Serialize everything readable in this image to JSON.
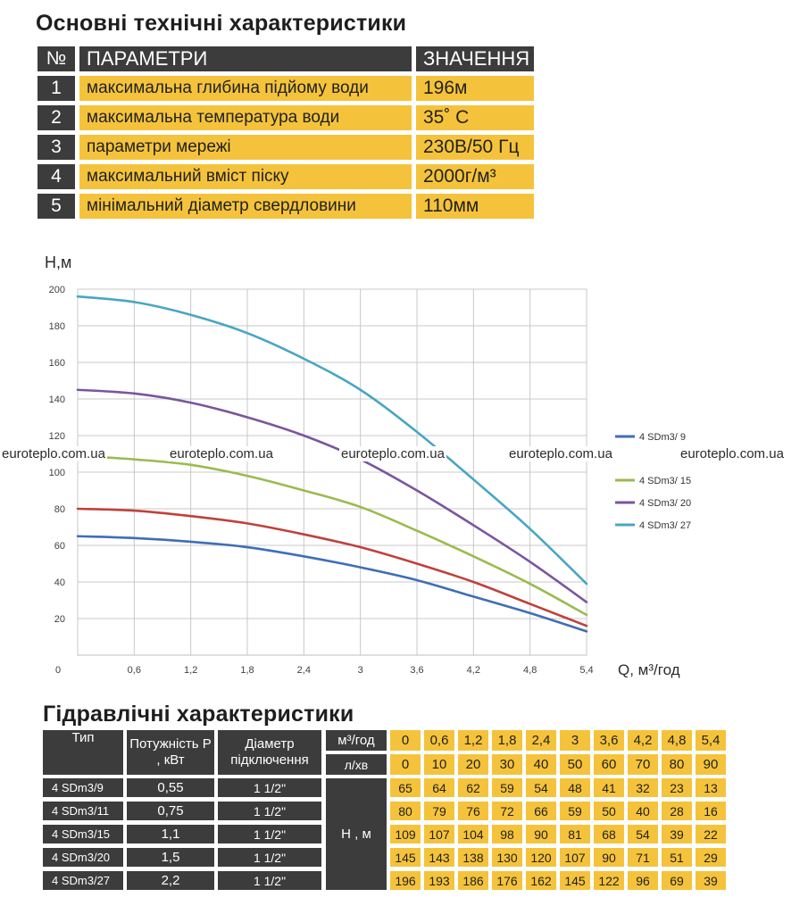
{
  "specs": {
    "title": "Основні технічні характеристики",
    "header": {
      "num": "№",
      "param": "ПАРАМЕТРИ",
      "value": "ЗНАЧЕННЯ"
    },
    "rows": [
      {
        "num": "1",
        "param": "максимальна глибина підйому води",
        "value": "196м"
      },
      {
        "num": "2",
        "param": "максимальна температура води",
        "value": "35˚ С"
      },
      {
        "num": "3",
        "param": "параметри мережі",
        "value": "230В/50 Гц"
      },
      {
        "num": "4",
        "param": "максимальний вміст піску",
        "value": "2000г/м³"
      },
      {
        "num": "5",
        "param": "мінімальний діаметр свердловини",
        "value": "110мм"
      }
    ]
  },
  "watermark": "euroteplo.com.ua",
  "chart_data": {
    "type": "line",
    "xlabel": "Q,  м³/год",
    "ylabel": "Н,м",
    "x": [
      0,
      0.6,
      1.2,
      1.8,
      2.4,
      3,
      3.6,
      4.2,
      4.8,
      5.4
    ],
    "x_tick_labels": [
      "0",
      "0,6",
      "1,2",
      "1,8",
      "2,4",
      "3",
      "3,6",
      "4,2",
      "4,8",
      "5,4"
    ],
    "y_ticks": [
      20,
      40,
      60,
      80,
      100,
      120,
      140,
      160,
      180,
      200
    ],
    "xlim": [
      0,
      5.4
    ],
    "ylim": [
      0,
      200
    ],
    "grid": true,
    "legend_position": "right",
    "series": [
      {
        "name": "4 SDm3/ 9",
        "color": "#3f6eb6",
        "values": [
          65,
          64,
          62,
          59,
          54,
          48,
          41,
          32,
          23,
          13
        ],
        "legend": true
      },
      {
        "color": "#c0413b",
        "values": [
          80,
          79,
          76,
          72,
          66,
          59,
          50,
          40,
          28,
          16
        ],
        "legend": false
      },
      {
        "name": "4 SDm3/ 15",
        "color": "#9abb4f",
        "values": [
          109,
          107,
          104,
          98,
          90,
          81,
          68,
          54,
          39,
          22
        ],
        "legend": true
      },
      {
        "name": "4 SDm3/ 20",
        "color": "#7b559e",
        "values": [
          145,
          143,
          138,
          130,
          120,
          107,
          90,
          71,
          51,
          29
        ],
        "legend": true
      },
      {
        "name": "4 SDm3/ 27",
        "color": "#48a6c3",
        "values": [
          196,
          193,
          186,
          176,
          162,
          145,
          122,
          96,
          69,
          39
        ],
        "legend": true
      }
    ]
  },
  "hydraulic": {
    "title": "Гідравлічні характеристики",
    "headers": {
      "type": "Тип",
      "power": "Потужність Р , кВт",
      "diameter": "Діаметр підключення",
      "flow_m3": "м³/год",
      "flow_lmin": "л/хв",
      "head": "Н , м"
    },
    "flow_m3": [
      "0",
      "0,6",
      "1,2",
      "1,8",
      "2,4",
      "3",
      "3,6",
      "4,2",
      "4,8",
      "5,4"
    ],
    "flow_lmin": [
      "0",
      "10",
      "20",
      "30",
      "40",
      "50",
      "60",
      "70",
      "80",
      "90"
    ],
    "models": [
      {
        "type": "4 SDm3/9",
        "power": "0,55",
        "diameter": "1 1/2\"",
        "heads": [
          "65",
          "64",
          "62",
          "59",
          "54",
          "48",
          "41",
          "32",
          "23",
          "13"
        ]
      },
      {
        "type": "4 SDm3/11",
        "power": "0,75",
        "diameter": "1 1/2\"",
        "heads": [
          "80",
          "79",
          "76",
          "72",
          "66",
          "59",
          "50",
          "40",
          "28",
          "16"
        ]
      },
      {
        "type": "4 SDm3/15",
        "power": "1,1",
        "diameter": "1 1/2\"",
        "heads": [
          "109",
          "107",
          "104",
          "98",
          "90",
          "81",
          "68",
          "54",
          "39",
          "22"
        ]
      },
      {
        "type": "4 SDm3/20",
        "power": "1,5",
        "diameter": "1 1/2\"",
        "heads": [
          "145",
          "143",
          "138",
          "130",
          "120",
          "107",
          "90",
          "71",
          "51",
          "29"
        ]
      },
      {
        "type": "4 SDm3/27",
        "power": "2,2",
        "diameter": "1 1/2\"",
        "heads": [
          "196",
          "193",
          "186",
          "176",
          "162",
          "145",
          "122",
          "96",
          "69",
          "39"
        ]
      }
    ]
  }
}
